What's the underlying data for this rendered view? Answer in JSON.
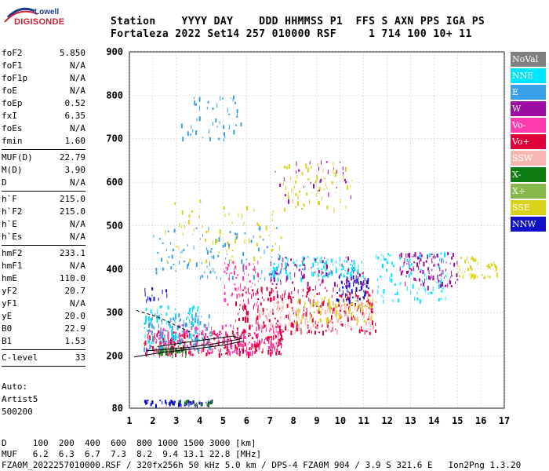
{
  "logo": {
    "line1": "Lowell",
    "line2": "DIGISONDE"
  },
  "header": {
    "labels": "Station    YYYY DAY    DDD HHMMSS P1  FFS S AXN PPS IGA PS",
    "values": "Fortaleza 2022 Set14 257 010000 RSF     1 714 100 10+ 11"
  },
  "params": {
    "group1": [
      {
        "name": "foF2",
        "value": "5.850"
      },
      {
        "name": "foF1",
        "value": "N/A"
      },
      {
        "name": "foF1p",
        "value": "N/A"
      },
      {
        "name": "foE",
        "value": "N/A"
      },
      {
        "name": "foEp",
        "value": "0.52"
      },
      {
        "name": "fxI",
        "value": "6.35"
      },
      {
        "name": "foEs",
        "value": "N/A"
      },
      {
        "name": "fmin",
        "value": "1.60"
      }
    ],
    "group2": [
      {
        "name": "MUF(D)",
        "value": "22.79"
      },
      {
        "name": "M(D)",
        "value": "3.90"
      },
      {
        "name": "D",
        "value": "N/A"
      }
    ],
    "group3": [
      {
        "name": "h`F",
        "value": "215.0"
      },
      {
        "name": "h`F2",
        "value": "215.0"
      },
      {
        "name": "h`E",
        "value": "N/A"
      },
      {
        "name": "h`Es",
        "value": "N/A"
      }
    ],
    "group4": [
      {
        "name": "hmF2",
        "value": "233.1"
      },
      {
        "name": "hmF1",
        "value": "N/A"
      },
      {
        "name": "hmE",
        "value": "110.0"
      },
      {
        "name": "yF2",
        "value": "20.7"
      },
      {
        "name": "yF1",
        "value": "N/A"
      },
      {
        "name": "yE",
        "value": "20.0"
      },
      {
        "name": "B0",
        "value": "22.9"
      },
      {
        "name": "B1",
        "value": "1.53"
      }
    ],
    "group5": [
      {
        "name": "C-level",
        "value": "33"
      }
    ]
  },
  "auto": {
    "line1": "Auto:",
    "line2": "Artist5",
    "line3": "500200"
  },
  "legend": [
    {
      "label": "NoVal",
      "color": "#808080"
    },
    {
      "label": "NNE",
      "color": "#00e5ff"
    },
    {
      "label": "E",
      "color": "#3aa0e8"
    },
    {
      "label": "W",
      "color": "#9c0ca0"
    },
    {
      "label": "Vo-",
      "color": "#ff3bb0"
    },
    {
      "label": "Vo+",
      "color": "#e0003a"
    },
    {
      "label": "SSW",
      "color": "#f7b7b0"
    },
    {
      "label": "X-",
      "color": "#0e7a12"
    },
    {
      "label": "X+",
      "color": "#88b84a"
    },
    {
      "label": "SSE",
      "color": "#d9d31c"
    },
    {
      "label": "NNW",
      "color": "#1010c8"
    }
  ],
  "footer": {
    "d_row": "D     100  200  400  600  800 1000 1500 3000 [km]",
    "muf_row": "MUF   6.2  6.3  6.7  7.3  8.2  9.4 13.1 22.8 [MHz]",
    "file_row": "FZA0M_2022257010000.RSF / 320fx256h 50 kHz 5.0 km / DPS-4 FZA0M 904 / 3.9 S 321.6 E   Ion2Png 1.3.20"
  },
  "chart_data": {
    "type": "scatter",
    "title": "",
    "xlabel": "",
    "ylabel": "",
    "xlim": [
      1,
      17
    ],
    "ylim": [
      80,
      900
    ],
    "x_ticks": [
      "1",
      "2",
      "3",
      "4",
      "5",
      "6",
      "7",
      "8",
      "9",
      "10",
      "11",
      "12",
      "13",
      "14",
      "15",
      "16",
      "17"
    ],
    "y_ticks": [
      "80",
      "200",
      "300",
      "400",
      "500",
      "600",
      "700",
      "800",
      "900"
    ],
    "grid": true,
    "legend_position": "right",
    "clusters": [
      {
        "series": "Vo+",
        "x": [
          1.6,
          7.6
        ],
        "y": [
          205,
          260
        ],
        "n": 260
      },
      {
        "series": "Vo-",
        "x": [
          1.6,
          7.5
        ],
        "y": [
          210,
          275
        ],
        "n": 200
      },
      {
        "series": "X-",
        "x": [
          2.2,
          3.4
        ],
        "y": [
          205,
          222
        ],
        "n": 40
      },
      {
        "series": "E",
        "x": [
          1.6,
          4.5
        ],
        "y": [
          215,
          300
        ],
        "n": 120
      },
      {
        "series": "NNE",
        "x": [
          1.6,
          4.0
        ],
        "y": [
          225,
          320
        ],
        "n": 70
      },
      {
        "series": "Vo+",
        "x": [
          5.5,
          11.5
        ],
        "y": [
          255,
          360
        ],
        "n": 260
      },
      {
        "series": "SSW",
        "x": [
          6.5,
          11.5
        ],
        "y": [
          260,
          330
        ],
        "n": 150
      },
      {
        "series": "SSE",
        "x": [
          8.0,
          11.5
        ],
        "y": [
          280,
          340
        ],
        "n": 80
      },
      {
        "series": "NNW",
        "x": [
          9.8,
          11.2
        ],
        "y": [
          330,
          390
        ],
        "n": 60
      },
      {
        "series": "NNE",
        "x": [
          7.0,
          11.0
        ],
        "y": [
          380,
          430
        ],
        "n": 110
      },
      {
        "series": "W",
        "x": [
          7.0,
          11.0
        ],
        "y": [
          360,
          430
        ],
        "n": 80
      },
      {
        "series": "NNE",
        "x": [
          11.5,
          14.5
        ],
        "y": [
          330,
          440
        ],
        "n": 90
      },
      {
        "series": "W",
        "x": [
          12.5,
          15.0
        ],
        "y": [
          360,
          440
        ],
        "n": 100
      },
      {
        "series": "SSE",
        "x": [
          15.0,
          16.8
        ],
        "y": [
          380,
          430
        ],
        "n": 50
      },
      {
        "series": "E",
        "x": [
          2.0,
          7.5
        ],
        "y": [
          380,
          500
        ],
        "n": 100
      },
      {
        "series": "SSE",
        "x": [
          2.5,
          7.5
        ],
        "y": [
          420,
          560
        ],
        "n": 70
      },
      {
        "series": "NNW",
        "x": [
          1.6,
          4.5
        ],
        "y": [
          88,
          100
        ],
        "n": 50
      },
      {
        "series": "X-",
        "x": [
          3.0,
          4.8
        ],
        "y": [
          88,
          100
        ],
        "n": 14
      },
      {
        "series": "E",
        "x": [
          3.0,
          5.8
        ],
        "y": [
          700,
          800
        ],
        "n": 50
      },
      {
        "series": "SSE",
        "x": [
          7.5,
          10.5
        ],
        "y": [
          540,
          650
        ],
        "n": 60
      },
      {
        "series": "W",
        "x": [
          7.2,
          10.5
        ],
        "y": [
          560,
          650
        ],
        "n": 30
      },
      {
        "series": "Vo-",
        "x": [
          5.0,
          6.5
        ],
        "y": [
          320,
          420
        ],
        "n": 60
      },
      {
        "series": "NNW",
        "x": [
          1.6,
          2.6
        ],
        "y": [
          330,
          360
        ],
        "n": 14
      }
    ]
  }
}
